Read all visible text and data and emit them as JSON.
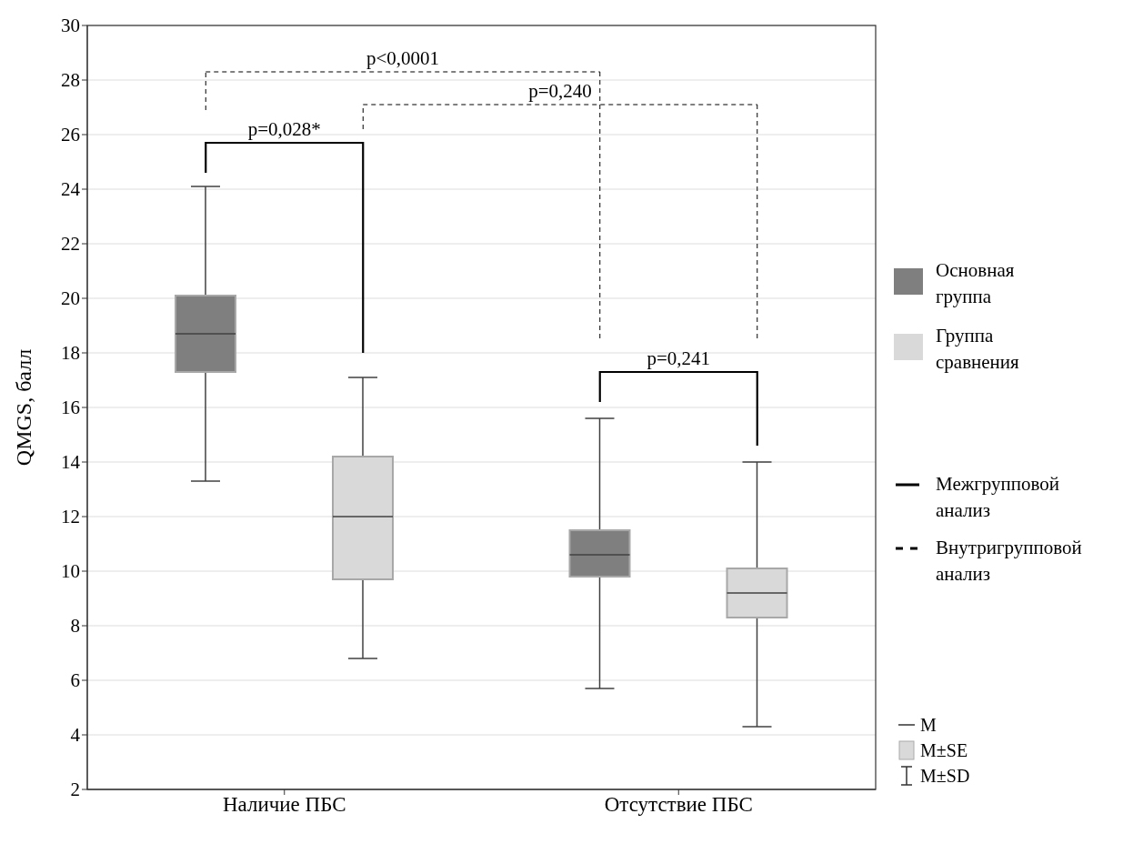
{
  "chart_data": {
    "type": "box",
    "ylabel": "QMGS, балл",
    "categories": [
      "Наличие ПБС",
      "Отсутствие ПБС"
    ],
    "series": [
      {
        "name": "Основная группа",
        "color": "#7f7f7f",
        "boxes": [
          {
            "low": 13.3,
            "q1": 17.3,
            "median": 18.7,
            "q3": 20.1,
            "high": 24.1
          },
          {
            "low": 5.7,
            "q1": 9.8,
            "median": 10.6,
            "q3": 11.5,
            "high": 15.6
          }
        ]
      },
      {
        "name": "Группа сравнения",
        "color": "#d9d9d9",
        "boxes": [
          {
            "low": 6.8,
            "q1": 9.7,
            "median": 12.0,
            "q3": 14.2,
            "high": 17.1
          },
          {
            "low": 4.3,
            "q1": 8.3,
            "median": 9.2,
            "q3": 10.1,
            "high": 14.0
          }
        ]
      }
    ],
    "ylim": [
      2,
      30
    ],
    "yticks": [
      2,
      4,
      6,
      8,
      10,
      12,
      14,
      16,
      18,
      20,
      22,
      24,
      26,
      28,
      30
    ],
    "grid": "y",
    "legend": "right",
    "annotations": [
      "p=0,028*",
      "p<0,0001",
      "p=0,240",
      "p=0,241",
      "Межгрупповой анализ",
      "Внутригрупповой анализ",
      "M",
      "M±SE",
      "M±SD"
    ]
  }
}
